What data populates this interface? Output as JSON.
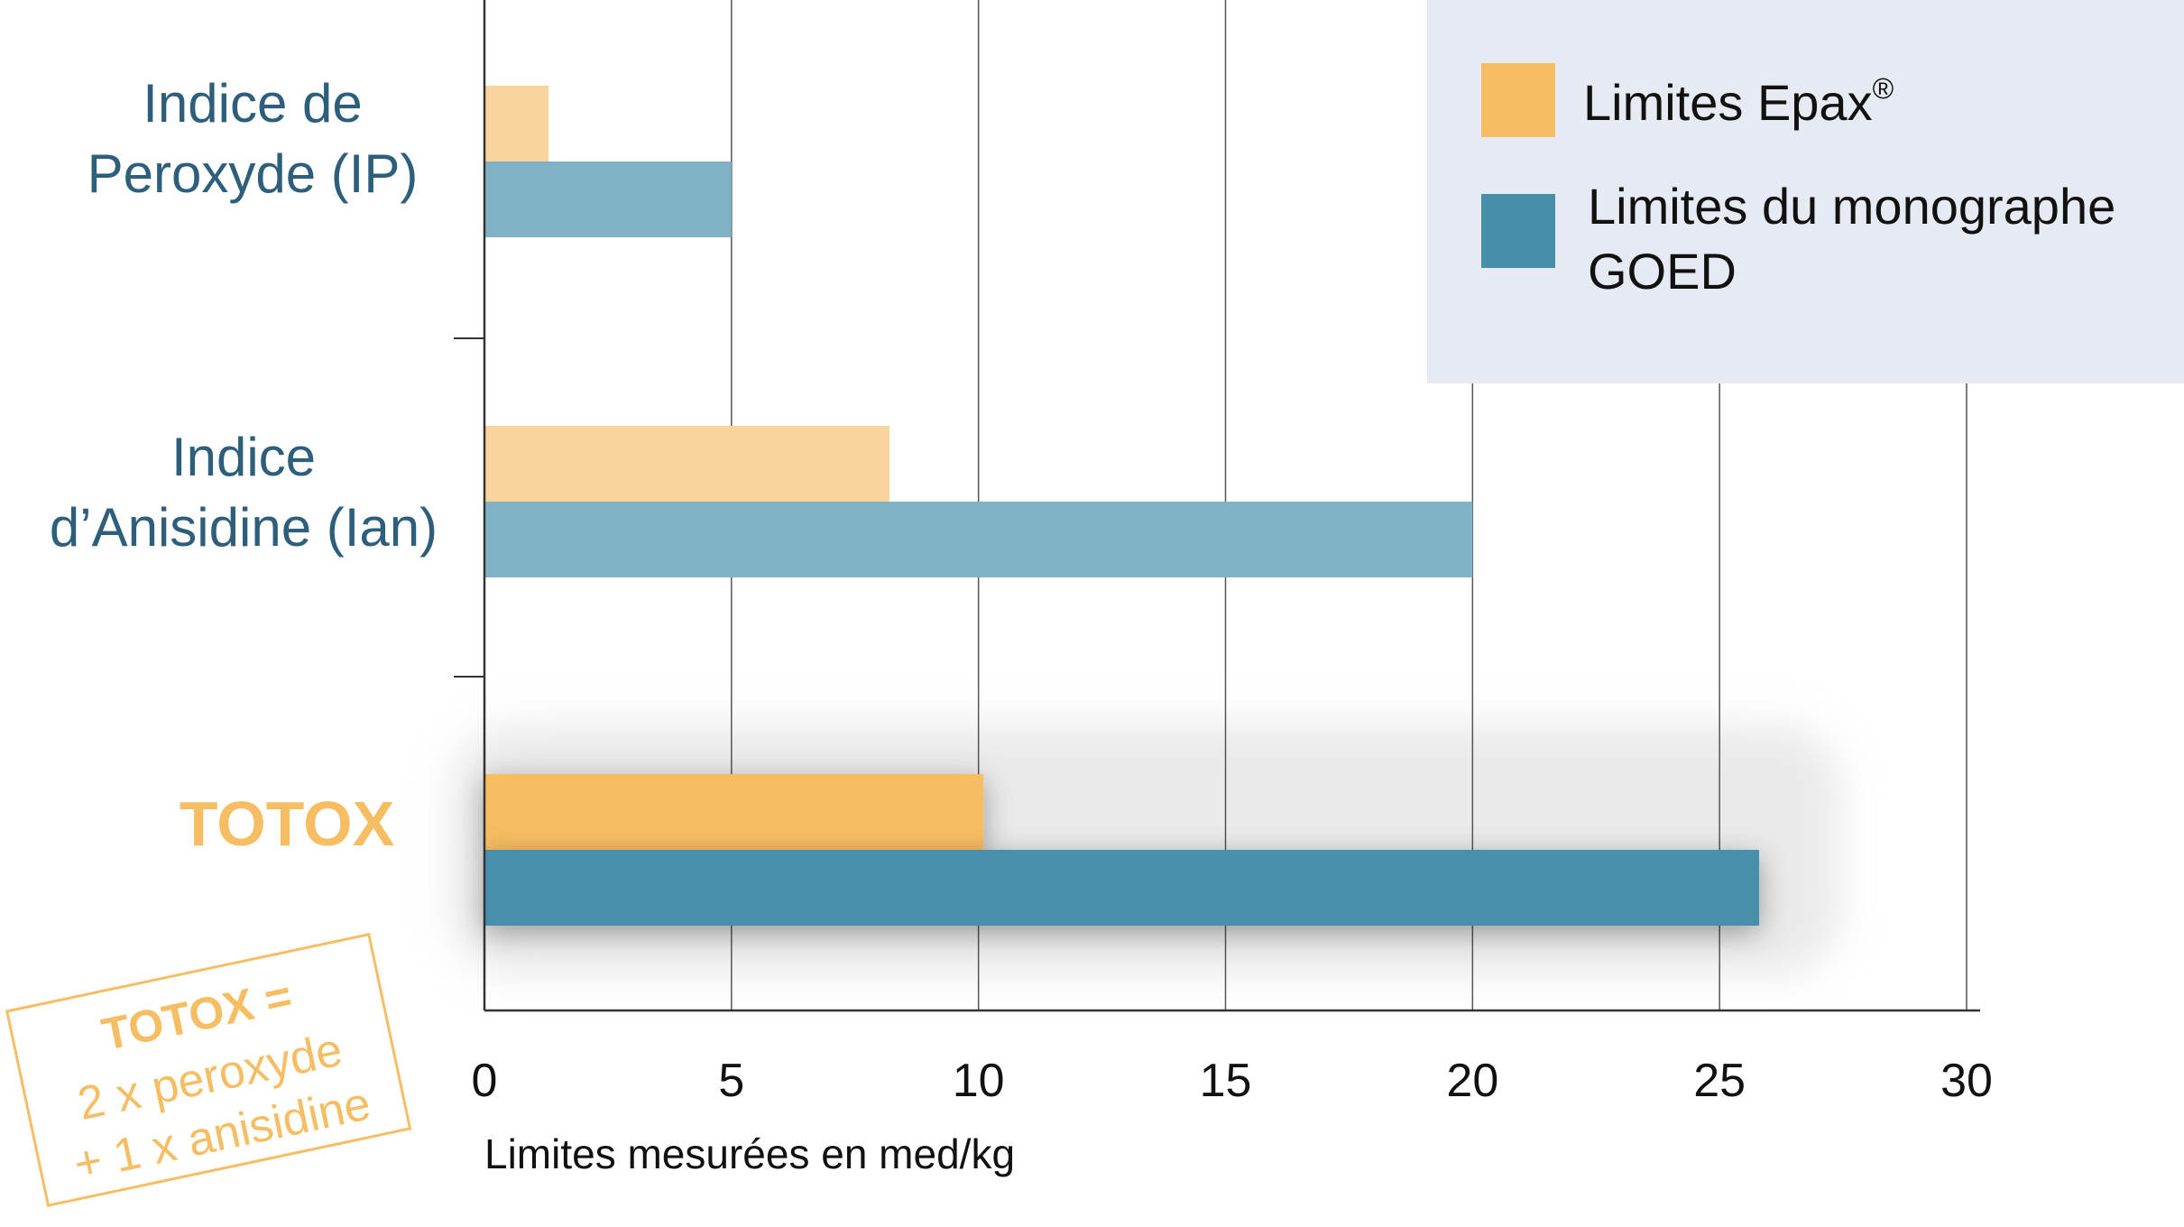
{
  "chart_data": {
    "type": "bar",
    "orientation": "horizontal",
    "title": "",
    "xlabel": "Limites mesurées en med/kg",
    "ylabel": "",
    "xlim": [
      0,
      30
    ],
    "xticks": [
      "0",
      "5",
      "10",
      "15",
      "20",
      "25",
      "30"
    ],
    "grid": "vertical",
    "categories": [
      {
        "lines": [
          "Indice de",
          "Peroxyde (IP)"
        ],
        "highlight": false
      },
      {
        "lines": [
          "Indice",
          "d’Anisidine (Ian)"
        ],
        "highlight": false
      },
      {
        "lines": [
          "TOTOX"
        ],
        "highlight": true
      }
    ],
    "series": [
      {
        "name": "Limites Epax",
        "name_superscript": "®",
        "values": [
          1.3,
          8.2,
          10.1
        ],
        "color": "#F7BD62",
        "faded_color": "#FAD49A"
      },
      {
        "name": "Limites du monographe GOED",
        "name_lines": [
          "Limites du monographe",
          "GOED"
        ],
        "values": [
          5.0,
          20.0,
          25.8
        ],
        "color": "#468FAB",
        "faded_color": "#7FB2C4"
      }
    ],
    "legend_position": "top-right",
    "annotation": {
      "lines": [
        "TOTOX =",
        "2 x peroxyde",
        "+ 1 x anisidine"
      ],
      "color": "#F7BD62"
    }
  },
  "colors": {
    "category_label": "#2D5F7D",
    "highlight_label": "#F7BD62",
    "legend_background": "#E6EBF3",
    "axis": "#333333",
    "grid": "#555555"
  }
}
